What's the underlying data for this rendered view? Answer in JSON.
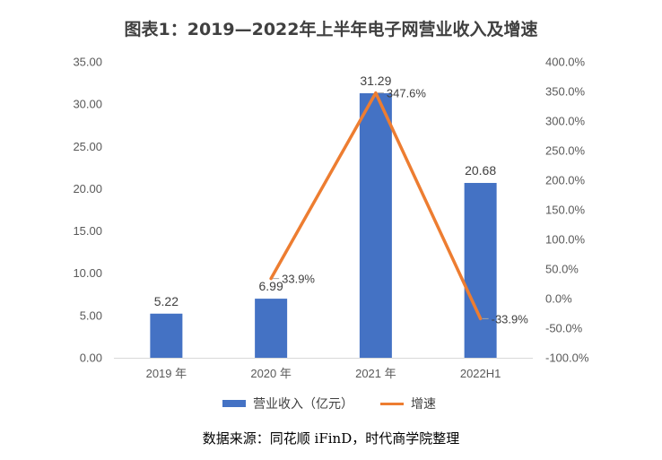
{
  "chart_data": {
    "type": "bar",
    "title": "图表1：2019—2022年上半年电子网营业收入及增速",
    "categories": [
      "2019 年",
      "2020 年",
      "2021 年",
      "2022H1"
    ],
    "series": [
      {
        "name": "营业收入（亿元）",
        "type": "bar",
        "axis": "left",
        "color": "#4472C4",
        "values": [
          5.22,
          6.99,
          31.29,
          20.68
        ],
        "labels": [
          "5.22",
          "6.99",
          "31.29",
          "20.68"
        ]
      },
      {
        "name": "增速",
        "type": "line",
        "axis": "right",
        "color": "#ED7D31",
        "values": [
          null,
          33.9,
          347.6,
          -33.9
        ],
        "labels": [
          "",
          "33.9%",
          "347.6%",
          "-33.9%"
        ]
      }
    ],
    "y_left": {
      "min": 0,
      "max": 35,
      "step": 5,
      "ticks": [
        "0.00",
        "5.00",
        "10.00",
        "15.00",
        "20.00",
        "25.00",
        "30.00",
        "35.00"
      ]
    },
    "y_right": {
      "min": -100,
      "max": 400,
      "step": 50,
      "ticks": [
        "-100.0%",
        "-50.0%",
        "0.0%",
        "50.0%",
        "100.0%",
        "150.0%",
        "200.0%",
        "250.0%",
        "300.0%",
        "350.0%",
        "400.0%"
      ]
    },
    "grid": false,
    "legend_position": "bottom"
  },
  "source": "数据来源：同花顺 iFinD，时代商学院整理"
}
